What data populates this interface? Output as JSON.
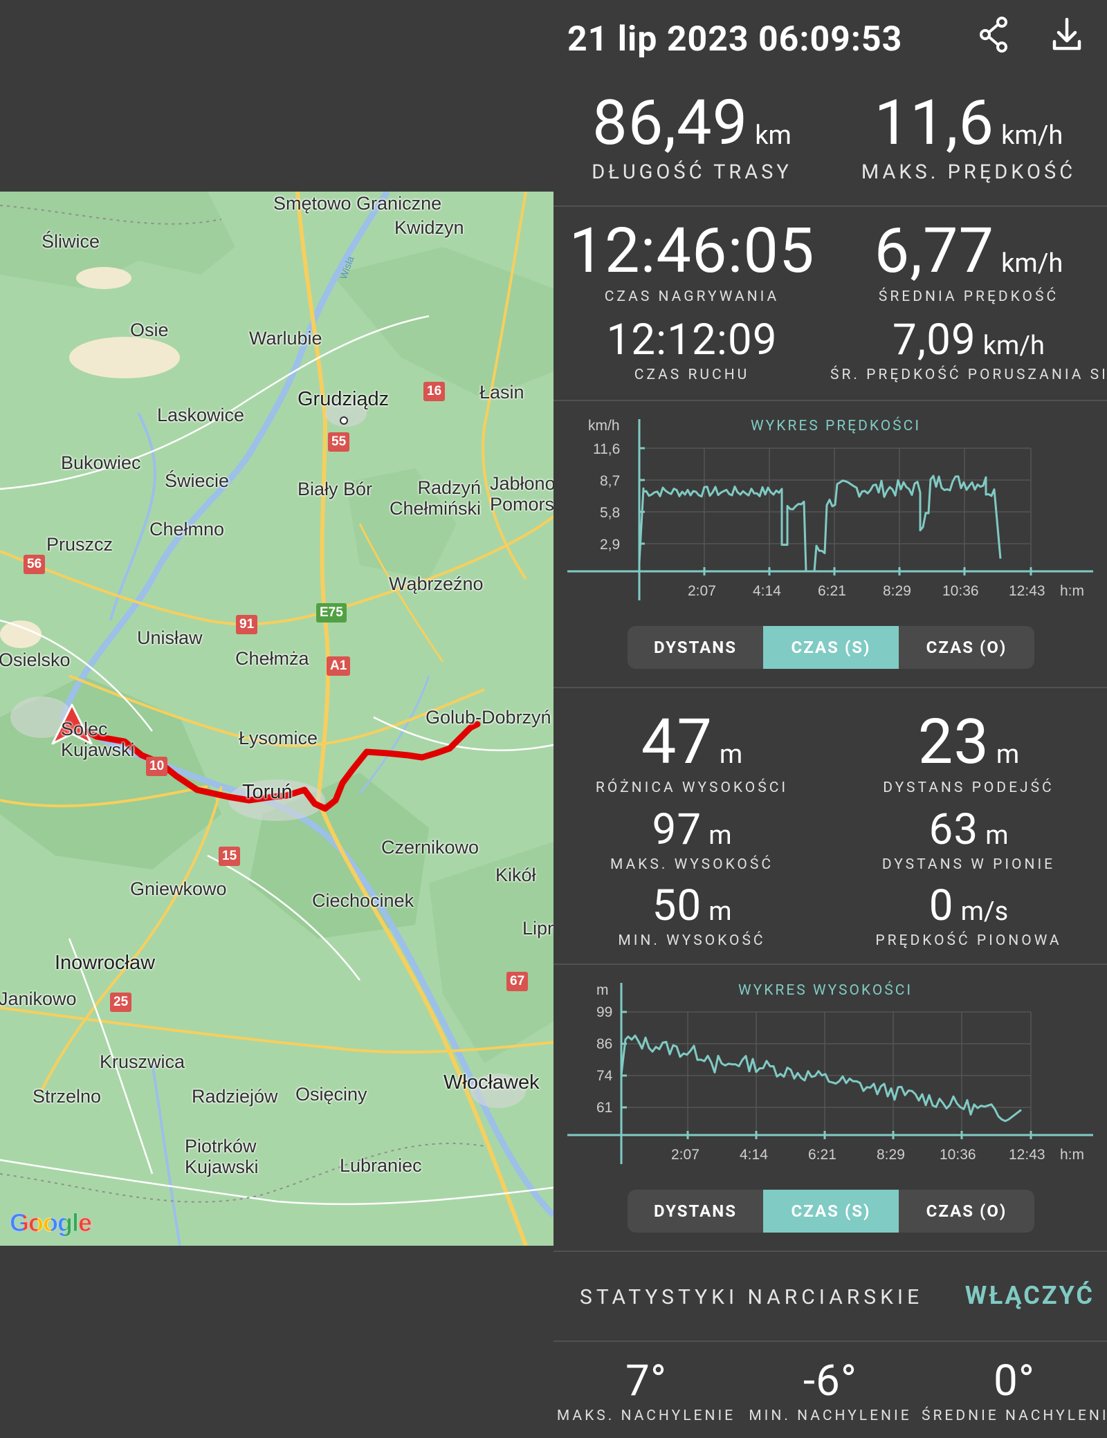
{
  "header": {
    "date": "21 lip 2023 06:09:53"
  },
  "stats_top": {
    "distance": {
      "value": "86,49",
      "unit": "km",
      "label": "DŁUGOŚĆ TRASY"
    },
    "max_speed": {
      "value": "11,6",
      "unit": "km/h",
      "label": "MAKS. PRĘDKOŚĆ"
    }
  },
  "stats_time": {
    "rec_time": {
      "value": "12:46:05",
      "label": "CZAS NAGRYWANIA"
    },
    "avg_speed": {
      "value": "6,77",
      "unit": "km/h",
      "label": "ŚREDNIA PRĘDKOŚĆ"
    },
    "moving_time": {
      "value": "12:12:09",
      "label": "CZAS RUCHU"
    },
    "avg_moving_speed": {
      "value": "7,09",
      "unit": "km/h",
      "label": "ŚR. PRĘDKOŚĆ PORUSZANIA SIĘ"
    }
  },
  "speed_chart": {
    "title": "WYKRES PRĘDKOŚCI",
    "unit": "km/h",
    "y_ticks": [
      "11,6",
      "8,7",
      "5,8",
      "2,9"
    ],
    "x_ticks": [
      "2:07",
      "4:14",
      "6:21",
      "8:29",
      "10:36",
      "12:43"
    ],
    "x_unit": "h:m",
    "tabs": [
      "DYSTANS",
      "CZAS (S)",
      "CZAS (O)"
    ],
    "active_tab": 1
  },
  "stats_elev": {
    "elev_diff": {
      "value": "47",
      "unit": "m",
      "label": "RÓŻNICA WYSOKOŚCI"
    },
    "climb_dist": {
      "value": "23",
      "unit": "m",
      "label": "DYSTANS PODEJŚĆ"
    },
    "max_elev": {
      "value": "97",
      "unit": "m",
      "label": "MAKS. WYSOKOŚĆ"
    },
    "vert_dist": {
      "value": "63",
      "unit": "m",
      "label": "DYSTANS W PIONIE"
    },
    "min_elev": {
      "value": "50",
      "unit": "m",
      "label": "MIN. WYSOKOŚĆ"
    },
    "vert_speed": {
      "value": "0",
      "unit": "m/s",
      "label": "PRĘDKOŚĆ PIONOWA"
    }
  },
  "elev_chart": {
    "title": "WYKRES WYSOKOŚCI",
    "unit": "m",
    "y_ticks": [
      "99",
      "86",
      "74",
      "61"
    ],
    "x_ticks": [
      "2:07",
      "4:14",
      "6:21",
      "8:29",
      "10:36",
      "12:43"
    ],
    "x_unit": "h:m",
    "tabs": [
      "DYSTANS",
      "CZAS (S)",
      "CZAS (O)"
    ],
    "active_tab": 1
  },
  "ski": {
    "label": "STATYSTYKI NARCIARSKIE",
    "button": "WŁĄCZYĆ"
  },
  "slopes": {
    "max": {
      "value": "7°",
      "label": "MAKS. NACHYLENIE"
    },
    "min": {
      "value": "-6°",
      "label": "MIN. NACHYLENIE"
    },
    "avg": {
      "value": "0°",
      "label": "ŚREDNIE NACHYLENIE"
    }
  },
  "map": {
    "places": [
      "Smętowo Graniczne",
      "Kwidzyn",
      "Śliwice",
      "Osie",
      "Warlubie",
      "Wisła",
      "Grudziądz",
      "Łasin",
      "Laskowice",
      "Bukowiec",
      "Świecie",
      "Biały Bór",
      "Radzyń Chełmiński",
      "Jabłono Pomors",
      "Pruszcz",
      "Chełmno",
      "Wąbrzeźno",
      "Unisław",
      "Chełmża",
      "Osielsko",
      "Solec Kujawski",
      "Łysomice",
      "Golub-Dobrzyń",
      "Toruń",
      "Czernikowo",
      "Kikół",
      "Gniewkowo",
      "Ciechocinek",
      "Lipn",
      "Inowrocław",
      "Janikowo",
      "Kruszwica",
      "Włocławek",
      "Strzelno",
      "Radziejów",
      "Osięciny",
      "Piotrków Kujawski",
      "Lubraniec"
    ],
    "roads": [
      "16",
      "55",
      "56",
      "91",
      "E75",
      "A1",
      "10",
      "15",
      "67",
      "25"
    ],
    "attribution": "Google",
    "route_color": "#e00000"
  },
  "colors": {
    "background": "#3b3b3b",
    "accent": "#80cbc4",
    "map_green": "#a9d6a7"
  },
  "icons": [
    "share-icon",
    "download-icon",
    "navigation-arrow-icon"
  ]
}
